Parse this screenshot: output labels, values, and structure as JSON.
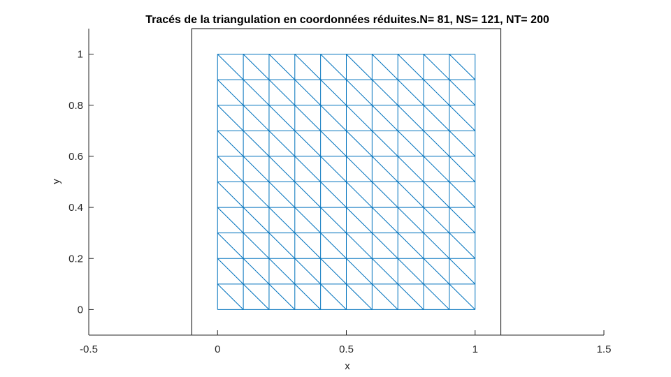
{
  "chart_data": {
    "type": "line",
    "title": "Tracés de la triangulation en coordonnées réduites.N= 81,  NS= 121,   NT= 200",
    "xlabel": "x",
    "ylabel": "y",
    "xlim": [
      -0.5,
      1.5
    ],
    "ylim": [
      -0.1,
      1.1
    ],
    "xticks": [
      -0.5,
      0,
      0.5,
      1,
      1.5
    ],
    "xtick_labels": [
      "-0.5",
      "0",
      "0.5",
      "1",
      "1.5"
    ],
    "yticks": [
      0,
      0.2,
      0.4,
      0.6,
      0.8,
      1
    ],
    "ytick_labels": [
      "0",
      "0.2",
      "0.4",
      "0.6",
      "0.8",
      "1"
    ],
    "grid": false,
    "mesh": {
      "xmin": 0,
      "xmax": 1,
      "ymin": 0,
      "ymax": 1,
      "divisions": 10,
      "diagonal": "top-left to bottom-right",
      "color": "#0072BD"
    },
    "frame": {
      "xmin": -0.1,
      "xmax": 1.1,
      "ymin": -0.1,
      "ymax": 1.1,
      "color": "#000000"
    }
  }
}
